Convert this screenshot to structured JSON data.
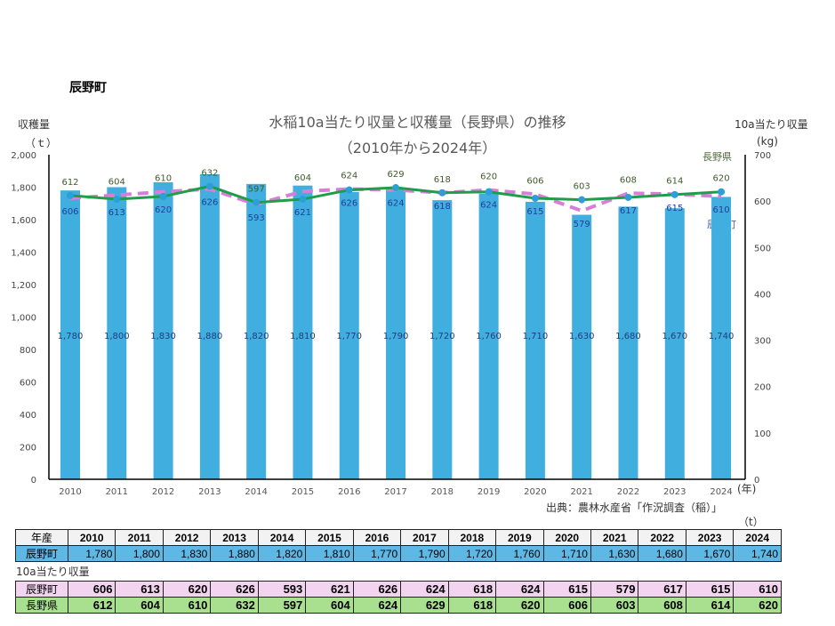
{
  "town_title": "辰野町",
  "source": "出典：農林水産省「作況調査（稲）」",
  "table_unit": "（t）",
  "table": {
    "header_label": "年産",
    "harvest_row_label": "辰野町",
    "yield_section_label": "10a当たり収量",
    "town_row_label": "辰野町",
    "pref_row_label": "長野県"
  },
  "colors": {
    "bars": "#41aee0",
    "town_line": "#d77fd6",
    "pref_line": "#1f9e4a",
    "markers": "#2a9fd8"
  },
  "chart_data": {
    "type": "bar+line",
    "title": "水稲10a当たり収量と収穫量（長野県）の推移",
    "subtitle": "（2010年から2024年）",
    "y_left_label": "収穫量",
    "y_left_unit": "（ｔ）",
    "y_right_label": "10a当たり収量",
    "y_right_unit": "(kg)",
    "x_unit": "(年)",
    "ylim_left": [
      0,
      2000
    ],
    "ylim_right": [
      0,
      700
    ],
    "left_ticks": [
      "0",
      "200",
      "400",
      "600",
      "800",
      "1,000",
      "1,200",
      "1,400",
      "1,600",
      "1,800",
      "2,000"
    ],
    "right_ticks": [
      "0",
      "100",
      "200",
      "300",
      "400",
      "500",
      "600",
      "700"
    ],
    "categories": [
      "2010",
      "2011",
      "2012",
      "2013",
      "2014",
      "2015",
      "2016",
      "2017",
      "2018",
      "2019",
      "2020",
      "2021",
      "2022",
      "2023",
      "2024"
    ],
    "series": [
      {
        "name": "辰野町",
        "type": "bar",
        "axis": "left",
        "values": [
          1780,
          1800,
          1830,
          1880,
          1820,
          1810,
          1770,
          1790,
          1720,
          1760,
          1710,
          1630,
          1680,
          1670,
          1740
        ],
        "labels": [
          "1,780",
          "1,800",
          "1,830",
          "1,880",
          "1,820",
          "1,810",
          "1,770",
          "1,790",
          "1,720",
          "1,760",
          "1,710",
          "1,630",
          "1,680",
          "1,670",
          "1,740"
        ]
      },
      {
        "name": "辰野町",
        "type": "line",
        "style": "dashed",
        "axis": "right",
        "values": [
          606,
          613,
          620,
          626,
          593,
          621,
          626,
          624,
          618,
          624,
          615,
          579,
          617,
          615,
          610
        ]
      },
      {
        "name": "長野県",
        "type": "line",
        "style": "solid",
        "axis": "right",
        "values": [
          612,
          604,
          610,
          632,
          597,
          604,
          624,
          629,
          618,
          620,
          606,
          603,
          608,
          614,
          620
        ]
      }
    ],
    "grid": false
  }
}
